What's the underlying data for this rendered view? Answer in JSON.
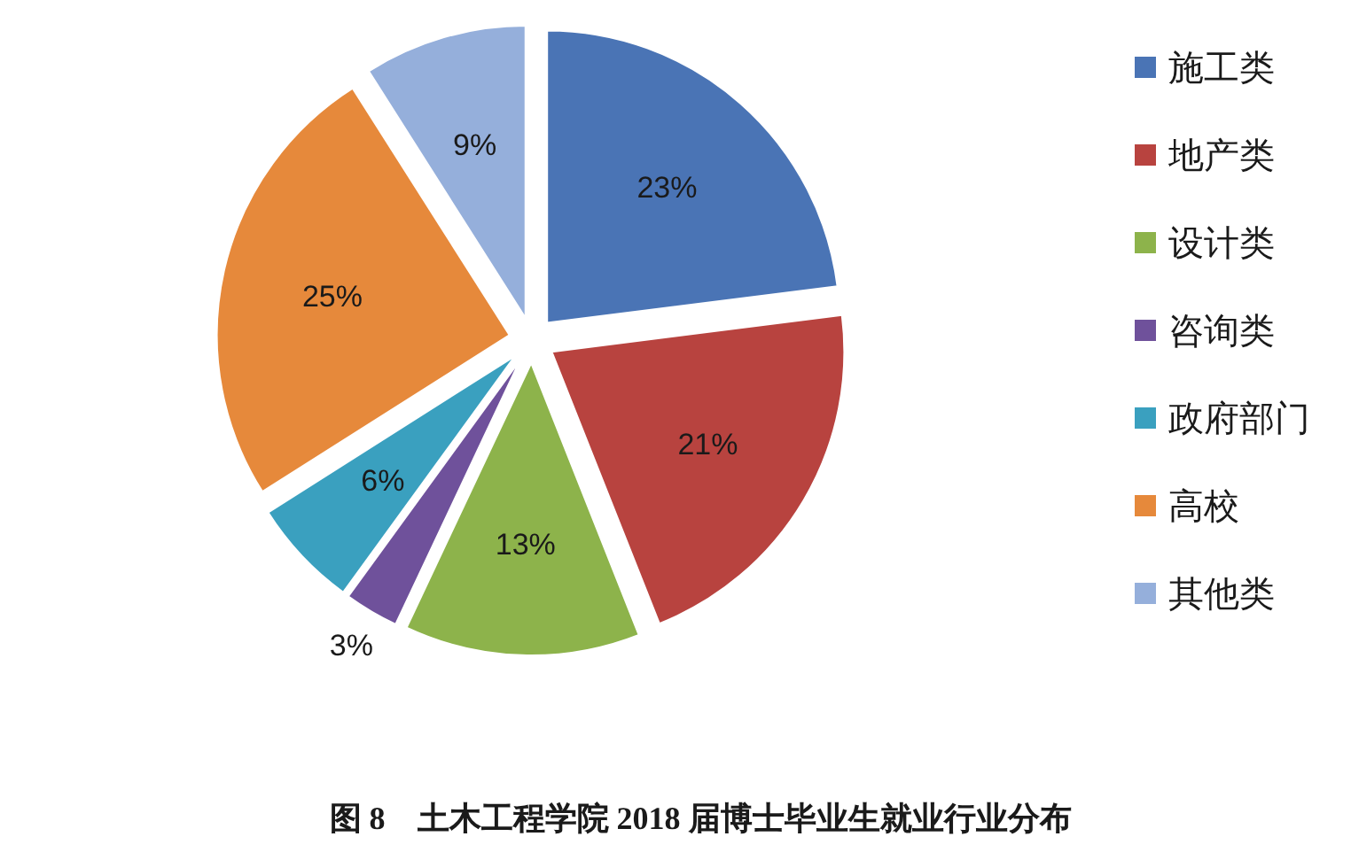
{
  "chart_data": {
    "type": "pie",
    "title": "图 8　土木工程学院 2018 届博士毕业生就业行业分布",
    "categories": [
      "施工类",
      "地产类",
      "设计类",
      "咨询类",
      "政府部门",
      "高校",
      "其他类"
    ],
    "values": [
      23,
      21,
      13,
      3,
      6,
      25,
      9
    ],
    "value_labels": [
      "23%",
      "21%",
      "13%",
      "3%",
      "6%",
      "25%",
      "9%"
    ],
    "colors": [
      "#4a74b5",
      "#b8433f",
      "#8db34b",
      "#6f519b",
      "#3aa0bf",
      "#e6893b",
      "#95afdb"
    ],
    "legend": "right"
  }
}
